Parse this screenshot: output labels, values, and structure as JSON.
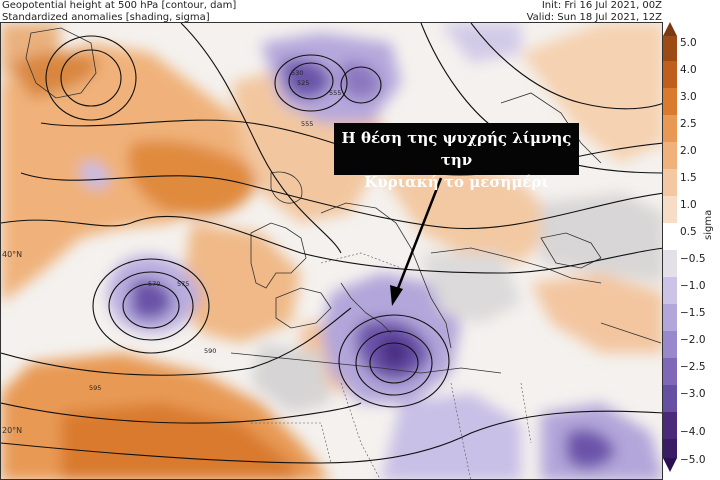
{
  "header": {
    "line1": "Geopotential height at 500 hPa [contour, dam]",
    "line2": "Standardized anomalies [shading, sigma]",
    "init": "Init: Fri 16 Jul 2021, 00Z",
    "valid": "Valid: Sun 18 Jul 2021, 12Z"
  },
  "colorbar": {
    "label": "sigma",
    "ticks": [
      "5.0",
      "4.0",
      "3.0",
      "2.5",
      "2.0",
      "1.5",
      "1.0",
      "0.5",
      "−0.5",
      "−1.0",
      "−1.5",
      "−2.0",
      "−2.5",
      "−3.0",
      "−4.0",
      "−5.0"
    ],
    "warm_color": "#c8661a",
    "cold_color": "#4b2a7a"
  },
  "annotation": {
    "line1": "Η θέση της ψυχρής λίμνης την",
    "line2": "Κυριακή το μεσημέρι"
  },
  "map": {
    "lat_labels": [
      "40°N",
      "20°N"
    ],
    "contour_labels": [
      "530",
      "525",
      "555",
      "570",
      "575",
      "590",
      "595",
      "555"
    ]
  }
}
